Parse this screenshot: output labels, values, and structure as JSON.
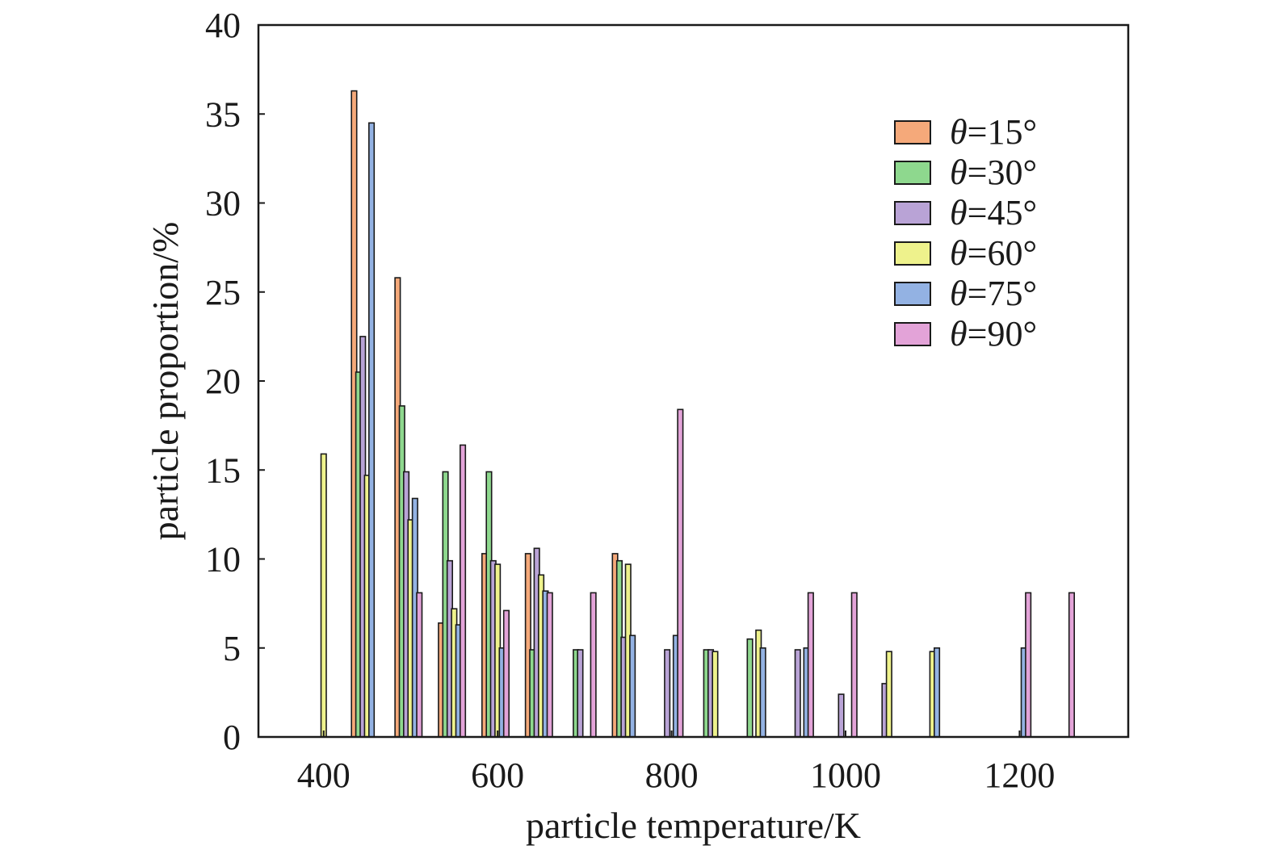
{
  "chart_data": {
    "type": "bar",
    "xlabel": "particle temperature/K",
    "ylabel": "particle proportion/%",
    "xlim": [
      325,
      1325
    ],
    "ylim": [
      0,
      40
    ],
    "xticks": [
      400,
      600,
      800,
      1000,
      1200
    ],
    "yticks": [
      0,
      5,
      10,
      15,
      20,
      25,
      30,
      35,
      40
    ],
    "grid": false,
    "legend_position": "top-right",
    "series": [
      {
        "name": "θ=15°",
        "color": "#f5a97a",
        "points": [
          [
            435,
            36.3
          ],
          [
            485,
            25.8
          ],
          [
            535,
            6.4
          ],
          [
            585,
            10.3
          ],
          [
            635,
            10.3
          ],
          [
            735,
            10.3
          ]
        ]
      },
      {
        "name": "θ=30°",
        "color": "#8ed88e",
        "points": [
          [
            440,
            20.5
          ],
          [
            490,
            18.6
          ],
          [
            540,
            14.9
          ],
          [
            590,
            14.9
          ],
          [
            640,
            4.9
          ],
          [
            690,
            4.9
          ],
          [
            740,
            9.9
          ],
          [
            840,
            4.9
          ],
          [
            890,
            5.5
          ]
        ]
      },
      {
        "name": "θ=45°",
        "color": "#b9a3d6",
        "points": [
          [
            445,
            22.5
          ],
          [
            495,
            14.9
          ],
          [
            545,
            9.9
          ],
          [
            595,
            9.9
          ],
          [
            645,
            10.6
          ],
          [
            695,
            4.9
          ],
          [
            745,
            5.6
          ],
          [
            795,
            4.9
          ],
          [
            845,
            4.9
          ],
          [
            945,
            4.9
          ],
          [
            995,
            2.4
          ],
          [
            1045,
            3.0
          ]
        ]
      },
      {
        "name": "θ=60°",
        "color": "#eef28c",
        "points": [
          [
            400,
            15.9
          ],
          [
            450,
            14.7
          ],
          [
            500,
            12.2
          ],
          [
            550,
            7.2
          ],
          [
            600,
            9.7
          ],
          [
            650,
            9.1
          ],
          [
            750,
            9.7
          ],
          [
            850,
            4.8
          ],
          [
            900,
            6.0
          ],
          [
            1050,
            4.8
          ],
          [
            1100,
            4.8
          ]
        ]
      },
      {
        "name": "θ=75°",
        "color": "#93b2e3",
        "points": [
          [
            455,
            34.5
          ],
          [
            505,
            13.4
          ],
          [
            555,
            6.3
          ],
          [
            605,
            5.0
          ],
          [
            655,
            8.2
          ],
          [
            755,
            5.7
          ],
          [
            805,
            5.7
          ],
          [
            905,
            5.0
          ],
          [
            955,
            5.0
          ],
          [
            1105,
            5.0
          ],
          [
            1205,
            5.0
          ]
        ]
      },
      {
        "name": "θ=90°",
        "color": "#e3a3d8",
        "points": [
          [
            510,
            8.1
          ],
          [
            560,
            16.4
          ],
          [
            610,
            7.1
          ],
          [
            660,
            8.1
          ],
          [
            710,
            8.1
          ],
          [
            810,
            18.4
          ],
          [
            960,
            8.1
          ],
          [
            1010,
            8.1
          ],
          [
            1210,
            8.1
          ],
          [
            1260,
            8.1
          ]
        ]
      }
    ]
  }
}
